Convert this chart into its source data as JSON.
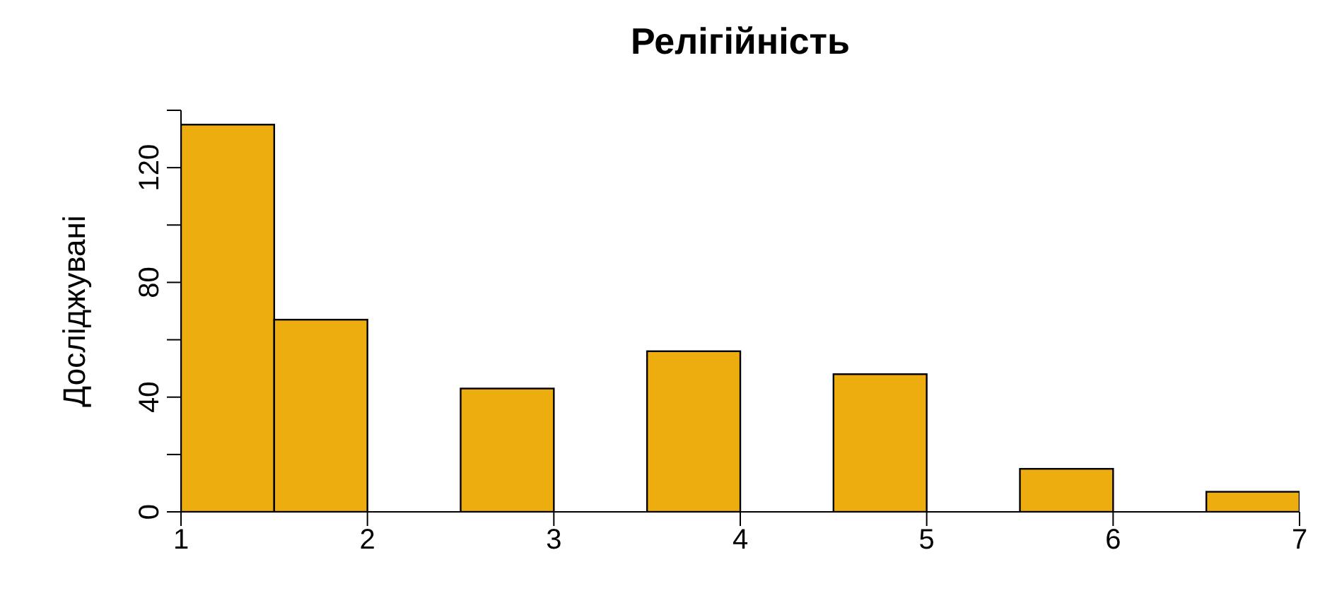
{
  "chart_data": {
    "type": "histogram",
    "title": "Релігійність",
    "ylabel": "Досліджувані",
    "bins": [
      1,
      1.5,
      2,
      2.5,
      3,
      3.5,
      4,
      4.5,
      5,
      5.5,
      6,
      6.5,
      7
    ],
    "values": [
      135,
      67,
      0,
      43,
      0,
      56,
      0,
      48,
      0,
      15,
      0,
      7
    ],
    "color": "#eead0e",
    "xlim": [
      1,
      7
    ],
    "xticks": [
      1,
      2,
      3,
      4,
      5,
      6,
      7
    ],
    "ylim": [
      0,
      140
    ],
    "yticks": [
      0,
      {
        "value": 20,
        "label": null
      },
      40,
      {
        "value": 60,
        "label": null
      },
      80,
      {
        "value": 100,
        "label": null
      },
      120,
      {
        "value": 140,
        "label": null
      }
    ],
    "grid": false,
    "legend": false
  }
}
